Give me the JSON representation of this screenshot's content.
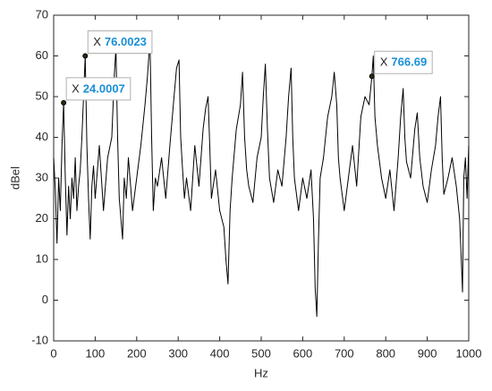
{
  "chart_data": {
    "type": "line",
    "xlabel": "Hz",
    "ylabel": "dBel",
    "x": [
      0,
      4,
      8,
      12,
      16,
      20,
      24.0007,
      28,
      32,
      36,
      40,
      44,
      48,
      52,
      56,
      60,
      64,
      68,
      72,
      76.0023,
      80,
      84,
      88,
      92,
      96,
      100,
      110,
      120,
      130,
      140,
      146,
      150,
      154,
      158,
      162,
      166,
      170,
      175,
      180,
      190,
      200,
      210,
      220,
      226,
      232,
      236,
      240,
      245,
      250,
      260,
      270,
      280,
      290,
      296,
      302,
      306,
      310,
      315,
      320,
      330,
      340,
      350,
      360,
      366,
      372,
      376,
      380,
      390,
      400,
      410,
      415,
      420,
      425,
      430,
      440,
      450,
      455,
      460,
      465,
      470,
      480,
      490,
      500,
      505,
      510,
      515,
      520,
      530,
      540,
      550,
      560,
      566,
      572,
      576,
      580,
      590,
      600,
      610,
      620,
      626,
      630,
      634,
      638,
      642,
      650,
      660,
      670,
      676,
      682,
      686,
      690,
      700,
      710,
      720,
      730,
      740,
      750,
      760,
      766.69,
      770,
      774,
      780,
      790,
      800,
      810,
      820,
      830,
      836,
      842,
      846,
      850,
      860,
      870,
      876,
      882,
      890,
      900,
      910,
      920,
      926,
      932,
      936,
      940,
      950,
      960,
      970,
      978,
      982,
      985,
      988,
      992,
      996,
      1000
    ],
    "series": [
      {
        "name": "dBel",
        "color": "#000000",
        "values": [
          35,
          27,
          14,
          30,
          22,
          38,
          48.5,
          30,
          16,
          28,
          20,
          30,
          25,
          35,
          22,
          28,
          32,
          40,
          50,
          60,
          38,
          25,
          15,
          28,
          33,
          25,
          38,
          22,
          35,
          40,
          55,
          62,
          40,
          25,
          20,
          15,
          30,
          25,
          35,
          22,
          30,
          38,
          48,
          55,
          64,
          40,
          22,
          30,
          28,
          35,
          25,
          38,
          50,
          57,
          59,
          40,
          33,
          25,
          30,
          22,
          38,
          28,
          42,
          47,
          50,
          38,
          25,
          32,
          22,
          18,
          10,
          4,
          22,
          30,
          42,
          48,
          56,
          40,
          32,
          28,
          24,
          35,
          40,
          50,
          58,
          42,
          30,
          24,
          32,
          28,
          40,
          50,
          57,
          40,
          30,
          22,
          30,
          25,
          32,
          20,
          3,
          -4,
          15,
          30,
          35,
          45,
          50,
          56,
          48,
          35,
          30,
          22,
          30,
          38,
          28,
          45,
          50,
          48,
          55,
          60,
          45,
          38,
          30,
          25,
          32,
          22,
          35,
          45,
          52,
          40,
          34,
          30,
          42,
          46,
          35,
          28,
          24,
          32,
          38,
          45,
          50,
          35,
          26,
          30,
          35,
          28,
          20,
          10,
          2,
          30,
          35,
          25,
          38
        ]
      }
    ],
    "xlim": [
      0,
      1000
    ],
    "xticks": [
      0,
      100,
      200,
      300,
      400,
      500,
      600,
      700,
      800,
      900,
      1000
    ],
    "ylim": [
      -10,
      70
    ],
    "yticks": [
      -10,
      0,
      10,
      20,
      30,
      40,
      50,
      60,
      70
    ],
    "annotations": [
      {
        "prefix": "X",
        "x": 24.0007,
        "y": 48.5
      },
      {
        "prefix": "X",
        "x": 76.0023,
        "y": 60
      },
      {
        "prefix": "X",
        "x": 766.69,
        "y": 55
      }
    ]
  }
}
